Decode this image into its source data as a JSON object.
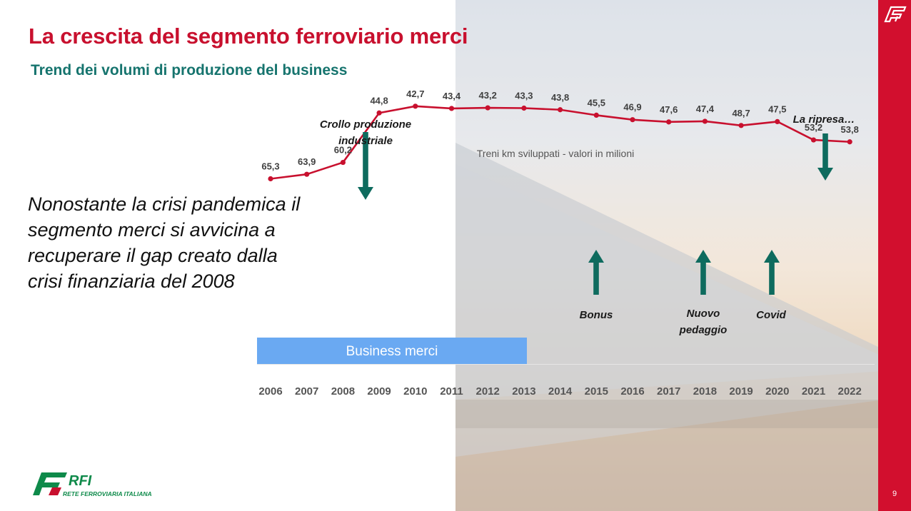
{
  "slide": {
    "title": "La crescita del segmento ferroviario merci",
    "subtitle": "Trend dei volumi di produzione del business",
    "body": "Nonostante la crisi pandemica il segmento merci si avvicina a recuperare il gap creato dalla crisi finanziaria del 2008",
    "page_number": "9",
    "business_label": "Business merci"
  },
  "logo": {
    "name": "RFI",
    "tagline": "RETE FERROVIARIA ITALIANA"
  },
  "colors": {
    "brand_red": "#c8102e",
    "band_red": "#d20f2e",
    "subtitle_teal": "#16746e",
    "arrow_teal": "#0e6b5e",
    "series": "#c8102e",
    "label_bar": "#6aa9f2"
  },
  "chart_data": {
    "type": "line",
    "title": "Treni km sviluppati - valori in milioni",
    "xlabel": "",
    "ylabel": "",
    "grid": false,
    "categories": [
      "2006",
      "2007",
      "2008",
      "2009",
      "2010",
      "2011",
      "2012",
      "2013",
      "2014",
      "2015",
      "2016",
      "2017",
      "2018",
      "2019",
      "2020",
      "2021",
      "2022"
    ],
    "values": [
      65.3,
      63.9,
      60.2,
      44.8,
      42.7,
      43.4,
      43.2,
      43.3,
      43.8,
      45.5,
      46.9,
      47.6,
      47.4,
      48.7,
      47.5,
      53.2,
      53.8
    ],
    "value_labels": [
      "65,3",
      "63,9",
      "60,2",
      "44,8",
      "42,7",
      "43,4",
      "43,2",
      "43,3",
      "43,8",
      "45,5",
      "46,9",
      "47,6",
      "47,4",
      "48,7",
      "47,5",
      "53,2",
      "53,8"
    ],
    "annotations": [
      {
        "text": [
          "Crollo produzione",
          "industriale"
        ],
        "year": "2009",
        "arrow": "down"
      },
      {
        "text": [
          "Bonus"
        ],
        "year": "2015",
        "arrow": "up"
      },
      {
        "text": [
          "Nuovo",
          "pedaggio"
        ],
        "year": "2018",
        "arrow": "up"
      },
      {
        "text": [
          "Covid"
        ],
        "year": "2020",
        "arrow": "up"
      },
      {
        "text": [
          "La ripresa…"
        ],
        "year": "2022",
        "arrow": "down"
      }
    ]
  }
}
